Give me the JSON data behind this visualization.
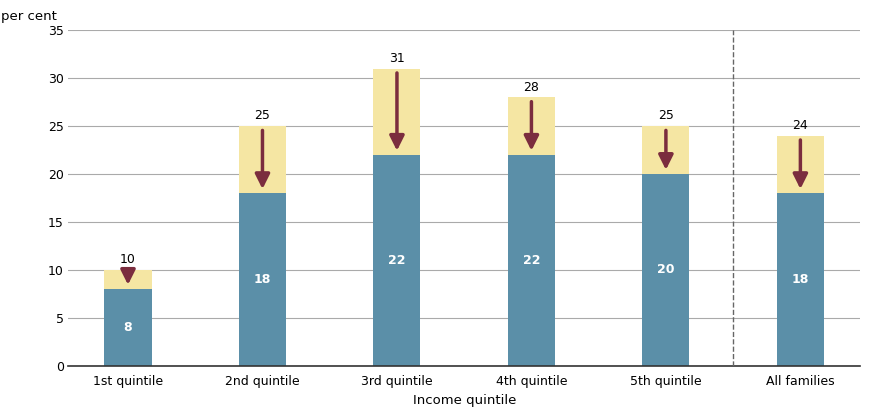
{
  "categories": [
    "1st quintile",
    "2nd quintile",
    "3rd quintile",
    "4th quintile",
    "5th quintile",
    "All families"
  ],
  "bottom_values": [
    8,
    18,
    22,
    22,
    20,
    18
  ],
  "top_values": [
    10,
    25,
    31,
    28,
    25,
    24
  ],
  "bar_color": "#5b8fa8",
  "top_color": "#f5e6a3",
  "arrow_color": "#7b2d3e",
  "xlabel": "Income quintile",
  "ylabel": "per cent",
  "ylim": [
    0,
    35
  ],
  "yticks": [
    0,
    5,
    10,
    15,
    20,
    25,
    30,
    35
  ],
  "dashed_line_x": 4.5,
  "background_color": "#ffffff",
  "grid_color": "#aaaaaa",
  "bar_width": 0.35
}
